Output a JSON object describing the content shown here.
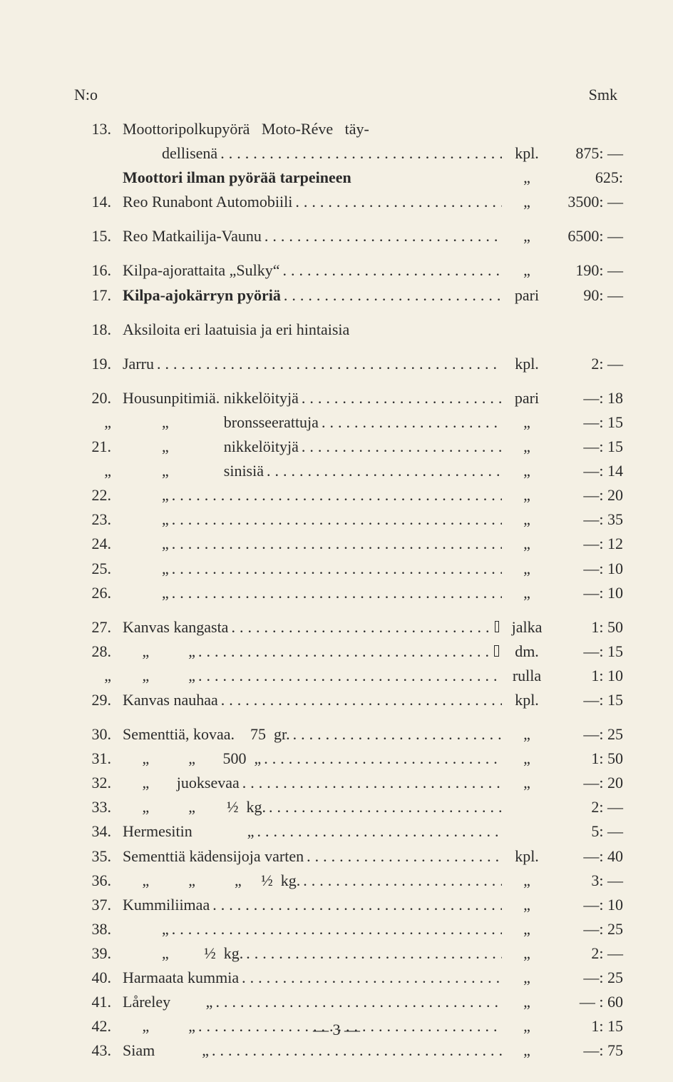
{
  "header": {
    "left": "N:o",
    "right": "Smk"
  },
  "rows": [
    {
      "n": "13.",
      "d": "Moottoripolkupyörä   Moto-Réve   täy-",
      "u": "",
      "p": "",
      "nodots": true
    },
    {
      "n": "",
      "d": "          dellisenä",
      "u": "kpl.",
      "p": "875: —"
    },
    {
      "n": "",
      "d": "Moottori ilman pyörää tarpeineen",
      "u": "„",
      "p": "625:",
      "bold": true,
      "nodots": true
    },
    {
      "n": "14.",
      "d": "Reo Runabont Automobiili",
      "u": "„",
      "p": "3500: —"
    },
    {
      "gap": true
    },
    {
      "n": "15.",
      "d": "Reo Matkailija-Vaunu",
      "u": "„",
      "p": "6500: —"
    },
    {
      "gap": true
    },
    {
      "n": "16.",
      "d": "Kilpa-ajorattaita „Sulky“",
      "u": "„",
      "p": "190: —"
    },
    {
      "n": "17.",
      "d": "Kilpa-ajokärryn pyöriä",
      "u": "pari",
      "p": "90: —",
      "bold": true
    },
    {
      "gap": true
    },
    {
      "n": "18.",
      "d": "Aksiloita eri laatuisia ja eri hintaisia",
      "u": "",
      "p": "",
      "nodots": true
    },
    {
      "gap": true
    },
    {
      "n": "19.",
      "d": "Jarru",
      "u": "kpl.",
      "p": "2: —"
    },
    {
      "gap": true
    },
    {
      "n": "20.",
      "d": "Housunpitimiä. nikkelöityjä",
      "u": "pari",
      "p": "—: 18"
    },
    {
      "n": "„",
      "d": "          „              bronsseerattuja",
      "u": "„",
      "p": "—: 15"
    },
    {
      "n": "21.",
      "d": "          „              nikkelöityjä",
      "u": "„",
      "p": "—: 15"
    },
    {
      "n": "„",
      "d": "          „              sinisiä",
      "u": "„",
      "p": "—: 14"
    },
    {
      "n": "22.",
      "d": "          „",
      "u": "„",
      "p": "—: 20"
    },
    {
      "n": "23.",
      "d": "          „",
      "u": "„",
      "p": "—: 35"
    },
    {
      "n": "24.",
      "d": "          „",
      "u": "„",
      "p": "—: 12"
    },
    {
      "n": "25.",
      "d": "          „",
      "u": "„",
      "p": "—: 10"
    },
    {
      "n": "26.",
      "d": "          „",
      "u": "„",
      "p": "—: 10"
    },
    {
      "gap": true
    },
    {
      "n": "27.",
      "d": "Kanvas kangasta",
      "u": "jalka",
      "p": "1: 50",
      "sq": true
    },
    {
      "n": "28.",
      "d": "     „          „",
      "u": "dm.",
      "p": "—: 15",
      "sq": true
    },
    {
      "n": "„",
      "d": "     „          „",
      "u": "rulla",
      "p": "1: 10"
    },
    {
      "n": "29.",
      "d": "Kanvas nauhaa",
      "u": "kpl.",
      "p": "—: 15"
    },
    {
      "gap": true
    },
    {
      "n": "30.",
      "d": "Sementtiä, kovaa.    75  gr.",
      "u": "„",
      "p": "—: 25"
    },
    {
      "n": "31.",
      "d": "     „          „       500  „",
      "u": "„",
      "p": "1: 50"
    },
    {
      "n": "32.",
      "d": "     „       juoksevaa",
      "u": "„",
      "p": "—: 20"
    },
    {
      "n": "33.",
      "d": "     „          „        ½  kg.",
      "u": "",
      "p": "2: —"
    },
    {
      "n": "34.",
      "d": "Hermesitin              „",
      "u": "",
      "p": "5: —"
    },
    {
      "n": "35.",
      "d": "Sementtiä kädensijoja varten",
      "u": "kpl.",
      "p": "—: 40"
    },
    {
      "n": "36.",
      "d": "     „          „          „     ½  kg.",
      "u": "„",
      "p": "3: —"
    },
    {
      "n": "37.",
      "d": "Kummiliimaa",
      "u": "„",
      "p": "—: 10"
    },
    {
      "n": "38.",
      "d": "          „",
      "u": "„",
      "p": "—: 25"
    },
    {
      "n": "39.",
      "d": "          „         ½  kg.",
      "u": "„",
      "p": "2: —"
    },
    {
      "n": "40.",
      "d": "Harmaata kummia",
      "u": "„",
      "p": "—: 25"
    },
    {
      "n": "41.",
      "d": "Låreley         „",
      "u": "„",
      "p": "— : 60"
    },
    {
      "n": "42.",
      "d": "     „          „",
      "u": "„",
      "p": "1: 15"
    },
    {
      "n": "43.",
      "d": "Siam            „",
      "u": "„",
      "p": "—: 75"
    }
  ],
  "footer": "—  3  —"
}
